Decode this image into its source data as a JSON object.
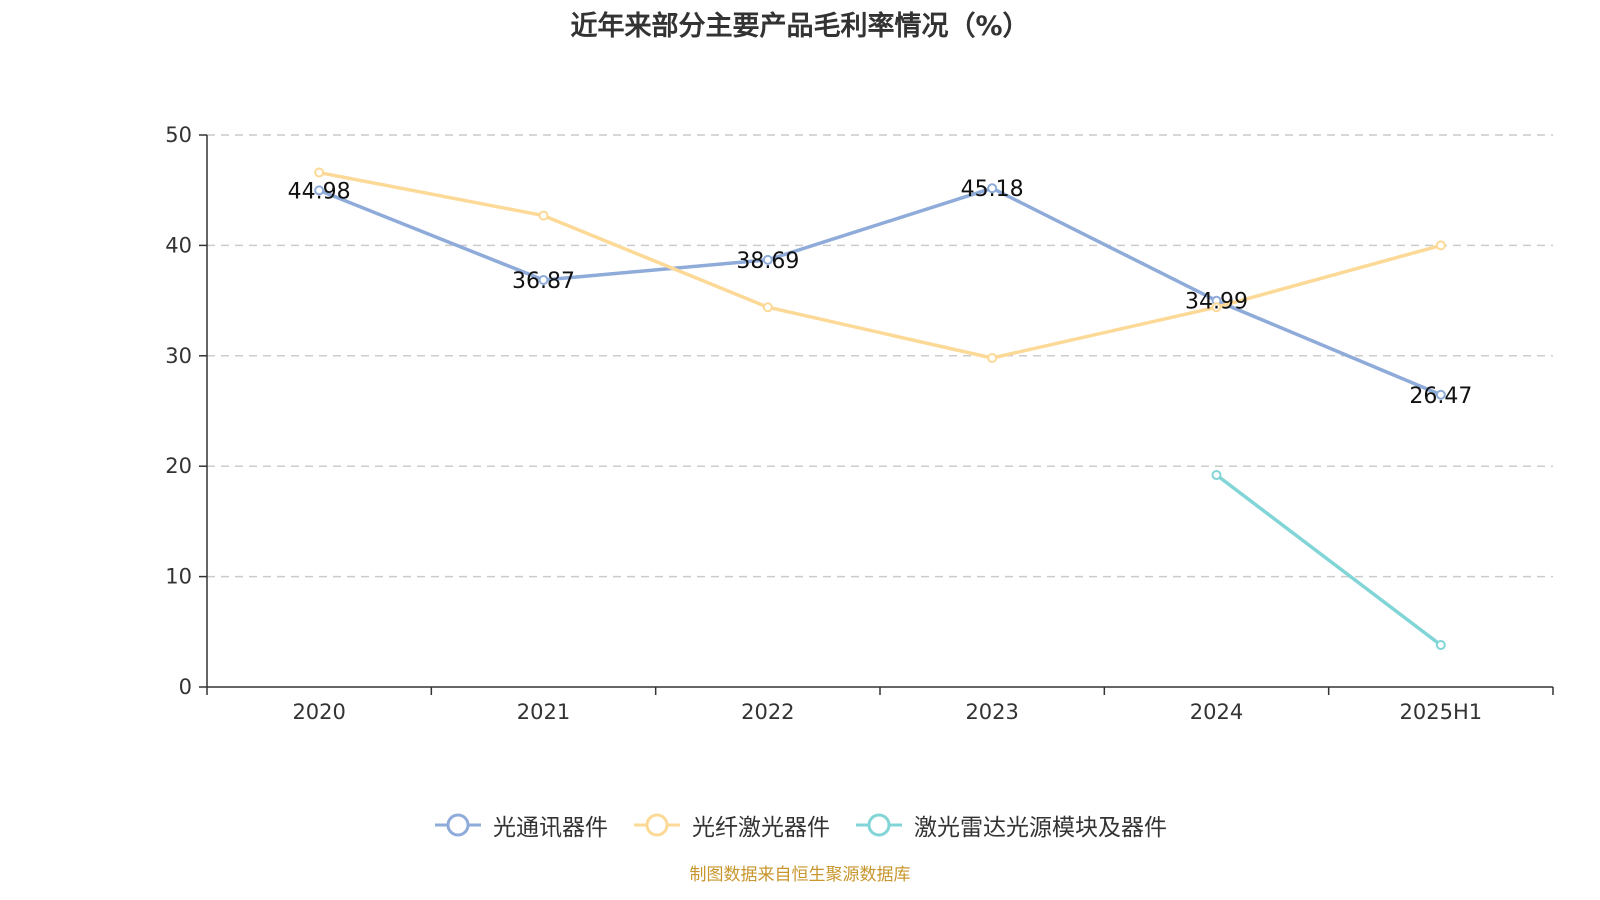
{
  "title": "近年来部分主要产品毛利率情况（%）",
  "source": "制图数据来自恒生聚源数据库",
  "chart_data": {
    "type": "line",
    "title": "近年来部分主要产品毛利率情况（%）",
    "categories": [
      "2020",
      "2021",
      "2022",
      "2023",
      "2024",
      "2025H1"
    ],
    "ylim": [
      0,
      50
    ],
    "yticks": [
      0,
      10,
      20,
      30,
      40,
      50
    ],
    "grid": true,
    "legend_position": "bottom",
    "series": [
      {
        "name": "光通讯器件",
        "color": "#8fabd9",
        "values": [
          44.98,
          36.87,
          38.69,
          45.18,
          34.99,
          26.47
        ],
        "labels": [
          "44.98",
          "36.87",
          "38.69",
          "45.18",
          "34.99",
          "26.47"
        ]
      },
      {
        "name": "光纤激光器件",
        "color": "#fcd996",
        "values": [
          46.6,
          42.7,
          34.4,
          29.8,
          34.4,
          40.0
        ],
        "labels": []
      },
      {
        "name": "激光雷达光源模块及器件",
        "color": "#82d5d7",
        "values": [
          null,
          null,
          null,
          null,
          19.2,
          3.8
        ],
        "labels": []
      }
    ]
  }
}
